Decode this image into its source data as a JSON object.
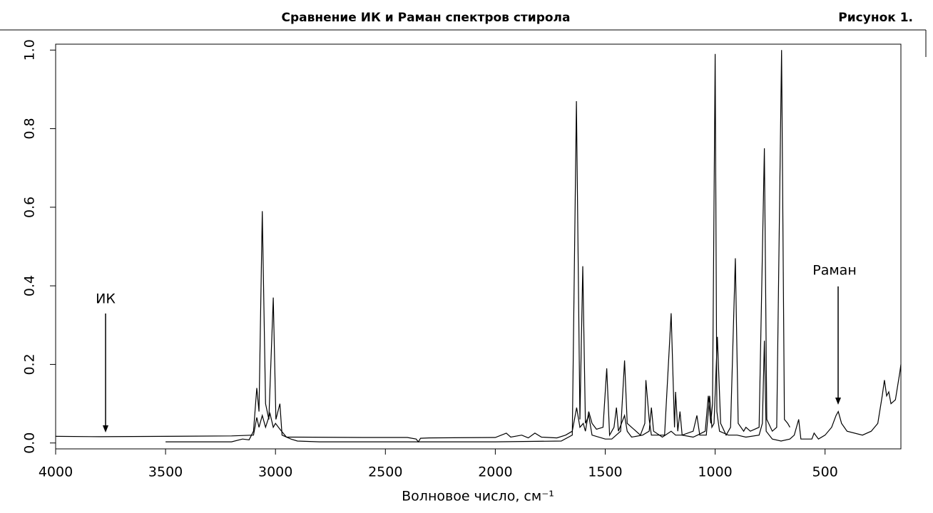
{
  "header": {
    "title": "Сравнение ИК и Раман спектров стирола",
    "figure": "Рисунок 1."
  },
  "chart_data": {
    "type": "line",
    "xlabel": "Волновое число, см⁻¹",
    "xlim": [
      4000,
      155
    ],
    "xticks": [
      4000,
      3500,
      3000,
      2500,
      2000,
      1500,
      1000,
      500
    ],
    "ylim": [
      -0.015,
      1.015
    ],
    "yticks": [
      {
        "value": 0,
        "label": "0.0"
      },
      0.2,
      0.4,
      0.6,
      0.8,
      {
        "value": 1,
        "label": "1.0"
      }
    ],
    "series": [
      {
        "name": "ИК",
        "color": "#000000",
        "x": [
          4000,
          3800,
          3500,
          3200,
          3100,
          3085,
          3075,
          3060,
          3045,
          3025,
          3010,
          3000,
          2980,
          2950,
          2900,
          2600,
          2400,
          2360,
          2350,
          2340,
          2300,
          2000,
          1950,
          1930,
          1880,
          1850,
          1820,
          1790,
          1720,
          1680,
          1650,
          1630,
          1615,
          1600,
          1590,
          1575,
          1560,
          1540,
          1510,
          1493,
          1480,
          1460,
          1449,
          1440,
          1412,
          1400,
          1380,
          1330,
          1300,
          1290,
          1280,
          1240,
          1200,
          1180,
          1150,
          1100,
          1083,
          1070,
          1040,
          1025,
          1015,
          1005,
          990,
          975,
          950,
          930,
          908,
          895,
          870,
          860,
          840,
          800,
          776,
          765,
          740,
          720,
          698,
          685,
          670,
          660
        ],
        "values": [
          0.017,
          0.016,
          0.017,
          0.018,
          0.02,
          0.065,
          0.04,
          0.07,
          0.04,
          0.075,
          0.04,
          0.05,
          0.035,
          0.015,
          0.015,
          0.014,
          0.014,
          0.01,
          0.003,
          0.012,
          0.013,
          0.014,
          0.025,
          0.015,
          0.02,
          0.013,
          0.025,
          0.015,
          0.013,
          0.02,
          0.03,
          0.09,
          0.04,
          0.05,
          0.03,
          0.08,
          0.05,
          0.035,
          0.04,
          0.19,
          0.02,
          0.04,
          0.09,
          0.03,
          0.07,
          0.03,
          0.015,
          0.02,
          0.03,
          0.09,
          0.03,
          0.015,
          0.03,
          0.02,
          0.02,
          0.03,
          0.07,
          0.02,
          0.02,
          0.12,
          0.04,
          0.05,
          0.27,
          0.05,
          0.02,
          0.04,
          0.47,
          0.05,
          0.03,
          0.04,
          0.03,
          0.04,
          0.75,
          0.06,
          0.03,
          0.04,
          1.0,
          0.06,
          0.05,
          0.04
        ]
      },
      {
        "name": "Раман",
        "color": "#000000",
        "x": [
          3500,
          3200,
          3150,
          3120,
          3100,
          3085,
          3075,
          3060,
          3045,
          3030,
          3010,
          2998,
          2980,
          2970,
          2930,
          2900,
          2800,
          2000,
          1700,
          1650,
          1631,
          1615,
          1602,
          1590,
          1575,
          1560,
          1500,
          1470,
          1450,
          1430,
          1412,
          1400,
          1340,
          1320,
          1315,
          1300,
          1290,
          1230,
          1200,
          1185,
          1180,
          1170,
          1160,
          1150,
          1100,
          1080,
          1045,
          1031,
          1020,
          1012,
          1000,
          992,
          980,
          940,
          920,
          900,
          860,
          800,
          785,
          776,
          768,
          740,
          700,
          660,
          640,
          620,
          610,
          560,
          550,
          530,
          500,
          470,
          450,
          440,
          425,
          400,
          330,
          290,
          260,
          240,
          230,
          220,
          210,
          200,
          180,
          160,
          155
        ],
        "values": [
          0.003,
          0.003,
          0.01,
          0.008,
          0.03,
          0.14,
          0.08,
          0.59,
          0.1,
          0.06,
          0.37,
          0.06,
          0.1,
          0.02,
          0.01,
          0.005,
          0.003,
          0.003,
          0.005,
          0.02,
          0.87,
          0.06,
          0.45,
          0.05,
          0.07,
          0.02,
          0.01,
          0.01,
          0.02,
          0.03,
          0.21,
          0.05,
          0.02,
          0.05,
          0.16,
          0.06,
          0.02,
          0.02,
          0.33,
          0.04,
          0.13,
          0.03,
          0.08,
          0.02,
          0.015,
          0.02,
          0.03,
          0.12,
          0.05,
          0.1,
          0.99,
          0.08,
          0.03,
          0.02,
          0.02,
          0.02,
          0.015,
          0.02,
          0.05,
          0.26,
          0.03,
          0.01,
          0.005,
          0.01,
          0.02,
          0.06,
          0.01,
          0.01,
          0.025,
          0.01,
          0.02,
          0.04,
          0.07,
          0.08,
          0.05,
          0.03,
          0.02,
          0.03,
          0.05,
          0.12,
          0.16,
          0.12,
          0.13,
          0.1,
          0.11,
          0.18,
          0.2
        ]
      }
    ]
  }
}
